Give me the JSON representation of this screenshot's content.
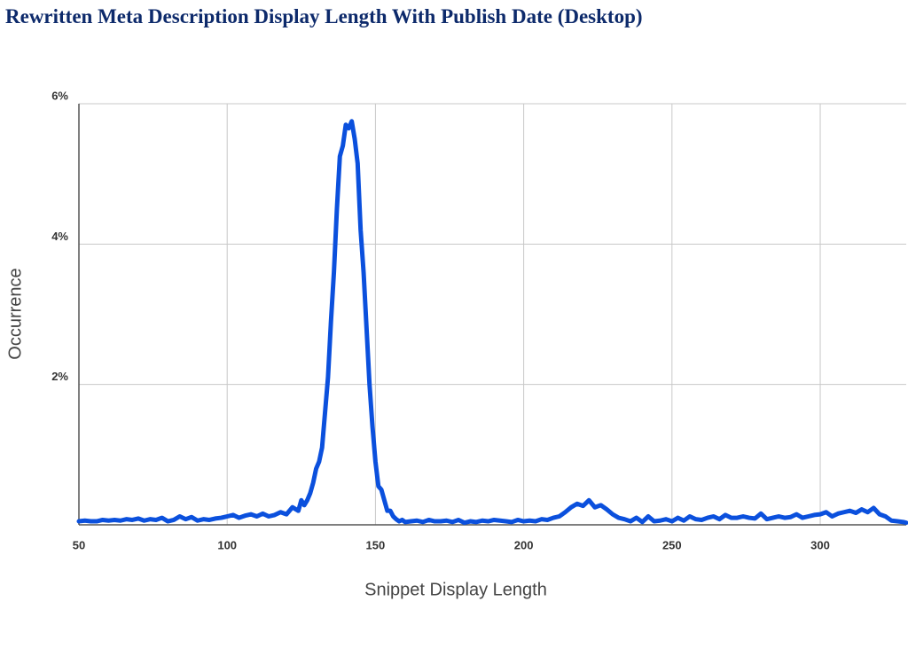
{
  "chart_data": {
    "type": "line",
    "title": "Rewritten Meta Description Display Length With Publish Date (Desktop)",
    "x_label": "Snippet Display Length",
    "y_label": "Occurrence",
    "color": "#0b50dd",
    "x": [
      50,
      52,
      54,
      56,
      58,
      60,
      62,
      64,
      66,
      68,
      70,
      72,
      74,
      76,
      78,
      80,
      82,
      84,
      86,
      88,
      90,
      92,
      94,
      96,
      98,
      100,
      102,
      104,
      106,
      108,
      110,
      112,
      114,
      116,
      118,
      120,
      122,
      124,
      125,
      126,
      127,
      128,
      129,
      130,
      131,
      132,
      133,
      134,
      135,
      136,
      137,
      138,
      139,
      140,
      141,
      142,
      143,
      144,
      145,
      146,
      147,
      148,
      149,
      150,
      151,
      152,
      153,
      154,
      155,
      156,
      157,
      158,
      159,
      160,
      162,
      164,
      166,
      168,
      170,
      172,
      174,
      176,
      178,
      180,
      182,
      184,
      186,
      188,
      190,
      192,
      194,
      196,
      198,
      200,
      202,
      204,
      206,
      208,
      210,
      212,
      214,
      216,
      218,
      220,
      222,
      224,
      226,
      228,
      230,
      232,
      234,
      236,
      238,
      240,
      242,
      244,
      246,
      248,
      250,
      252,
      254,
      256,
      258,
      260,
      262,
      264,
      266,
      268,
      270,
      272,
      274,
      276,
      278,
      280,
      282,
      284,
      286,
      288,
      290,
      292,
      294,
      296,
      298,
      300,
      302,
      304,
      306,
      308,
      310,
      312,
      314,
      316,
      318,
      320,
      322,
      324,
      326,
      328,
      329
    ],
    "values": [
      0.05,
      0.06,
      0.05,
      0.05,
      0.07,
      0.06,
      0.07,
      0.06,
      0.08,
      0.07,
      0.09,
      0.06,
      0.08,
      0.07,
      0.1,
      0.05,
      0.07,
      0.12,
      0.08,
      0.11,
      0.06,
      0.08,
      0.07,
      0.09,
      0.1,
      0.12,
      0.14,
      0.1,
      0.13,
      0.15,
      0.12,
      0.16,
      0.12,
      0.14,
      0.18,
      0.15,
      0.25,
      0.2,
      0.35,
      0.28,
      0.35,
      0.45,
      0.6,
      0.8,
      0.9,
      1.1,
      1.6,
      2.1,
      2.9,
      3.6,
      4.5,
      5.25,
      5.4,
      5.7,
      5.65,
      5.75,
      5.5,
      5.15,
      4.2,
      3.6,
      2.8,
      2.0,
      1.4,
      0.9,
      0.55,
      0.5,
      0.35,
      0.2,
      0.2,
      0.12,
      0.08,
      0.05,
      0.07,
      0.04,
      0.05,
      0.06,
      0.04,
      0.07,
      0.05,
      0.05,
      0.06,
      0.04,
      0.07,
      0.03,
      0.05,
      0.04,
      0.06,
      0.05,
      0.07,
      0.06,
      0.05,
      0.04,
      0.07,
      0.05,
      0.06,
      0.05,
      0.08,
      0.07,
      0.1,
      0.12,
      0.18,
      0.25,
      0.3,
      0.27,
      0.35,
      0.25,
      0.28,
      0.22,
      0.15,
      0.1,
      0.08,
      0.05,
      0.1,
      0.04,
      0.12,
      0.05,
      0.06,
      0.08,
      0.05,
      0.1,
      0.06,
      0.12,
      0.08,
      0.07,
      0.1,
      0.12,
      0.08,
      0.14,
      0.1,
      0.1,
      0.12,
      0.1,
      0.09,
      0.16,
      0.08,
      0.1,
      0.12,
      0.1,
      0.11,
      0.15,
      0.1,
      0.12,
      0.14,
      0.15,
      0.18,
      0.12,
      0.16,
      0.18,
      0.2,
      0.17,
      0.22,
      0.18,
      0.24,
      0.15,
      0.12,
      0.06,
      0.05,
      0.04,
      0.03
    ],
    "xlim": [
      50,
      329
    ],
    "ylim": [
      0,
      6
    ],
    "xticks": [
      50,
      100,
      150,
      200,
      250,
      300
    ],
    "yticks": [
      {
        "value": 2,
        "label": "2%"
      },
      {
        "value": 4,
        "label": "4%"
      },
      {
        "value": 6,
        "label": "6%"
      }
    ],
    "grid": true
  }
}
